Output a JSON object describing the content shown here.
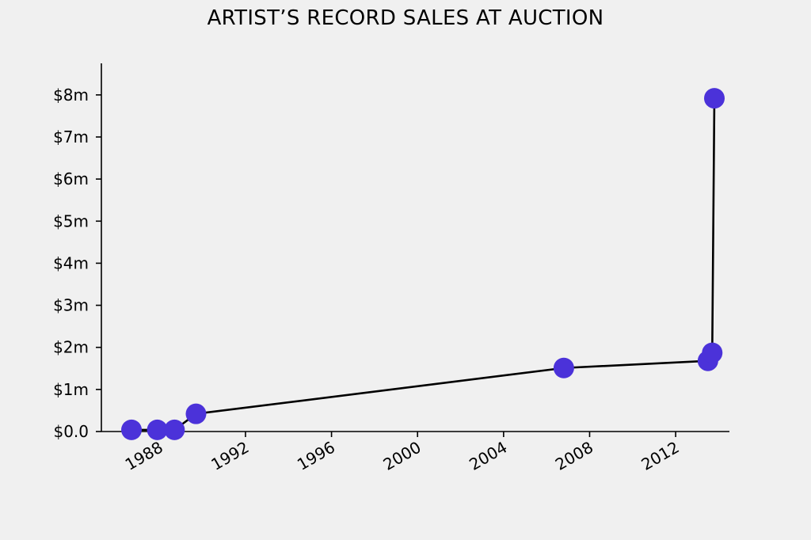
{
  "chart_data": {
    "type": "line",
    "title": "ARTIST’S RECORD SALES AT AUCTION",
    "xlabel": "",
    "ylabel": "",
    "x_axis": {
      "scale": "time",
      "min_year": 1985.3,
      "max_year": 2014.5,
      "ticks": [
        1988,
        1992,
        1996,
        2000,
        2004,
        2008,
        2012
      ],
      "tick_labels": [
        "1988",
        "1992",
        "1996",
        "2000",
        "2004",
        "2008",
        "2012"
      ]
    },
    "y_axis": {
      "min": 0,
      "max": 8.75,
      "ticks": [
        0,
        1,
        2,
        3,
        4,
        5,
        6,
        7,
        8
      ],
      "tick_labels": [
        "$0.0",
        "$1m",
        "$2m",
        "$3m",
        "$4m",
        "$5m",
        "$6m",
        "$7m",
        "$8m"
      ]
    },
    "grid": false,
    "series": [
      {
        "color": "#4b32d9",
        "line_color": "#000000",
        "points": [
          {
            "x": 1986.7,
            "y": 0.04
          },
          {
            "x": 1987.9,
            "y": 0.04
          },
          {
            "x": 1988.7,
            "y": 0.04
          },
          {
            "x": 1989.7,
            "y": 0.42
          },
          {
            "x": 2006.8,
            "y": 1.51
          },
          {
            "x": 2013.5,
            "y": 1.68
          },
          {
            "x": 2013.7,
            "y": 1.87
          },
          {
            "x": 2013.8,
            "y": 7.92
          }
        ]
      }
    ]
  }
}
